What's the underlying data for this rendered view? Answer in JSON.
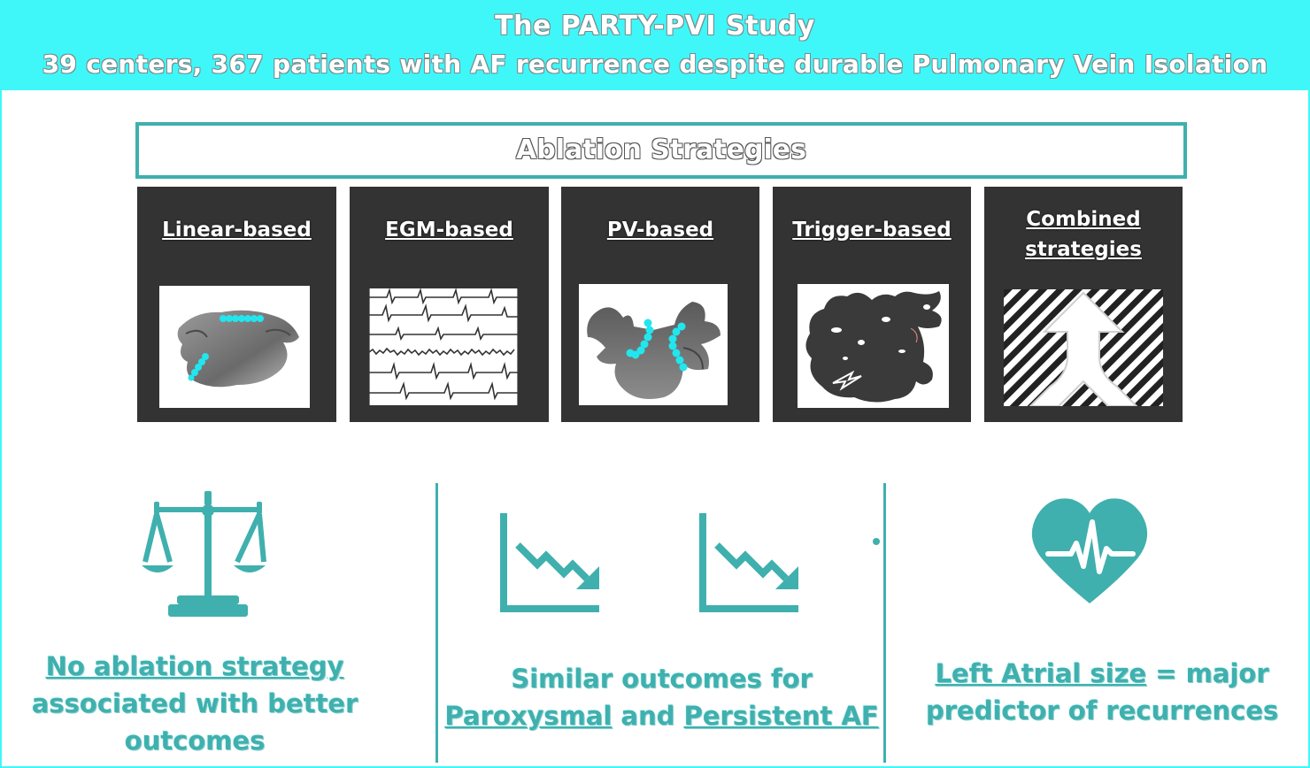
{
  "header": {
    "title": "The PARTY-PVI Study",
    "subtitle": "39 centers, 367 patients with AF recurrence despite durable Pulmonary Vein Isolation"
  },
  "strategies_heading": "Ablation Strategies",
  "strategies": [
    {
      "label": "Linear-based",
      "icon": "atrium-linear-lesions"
    },
    {
      "label": "EGM-based",
      "icon": "electrogram-traces"
    },
    {
      "label": "PV-based",
      "icon": "pulmonary-vein-isolation"
    },
    {
      "label": "Trigger-based",
      "icon": "atrium-trigger"
    },
    {
      "label": "Combined strategies",
      "icon": "merging-arrow"
    }
  ],
  "findings": {
    "left": {
      "icon": "scales-icon",
      "line1": "No ablation strategy",
      "line2": "associated with better",
      "line3": "outcomes"
    },
    "middle": {
      "icon": "downtrend-chart-icon",
      "line1": "Similar outcomes for",
      "paroxysmal": "Paroxysmal",
      "and": "and",
      "persistent": "Persistent AF"
    },
    "right": {
      "icon": "heart-pulse-icon",
      "la_size": "Left Atrial size",
      "equals": "= major",
      "line2": "predictor of recurrences"
    }
  },
  "colors": {
    "header_bg": "#3ff7f9",
    "accent_teal": "#3fb0ae",
    "card_bg": "#333333",
    "lesion_cyan": "#22e6ee"
  }
}
